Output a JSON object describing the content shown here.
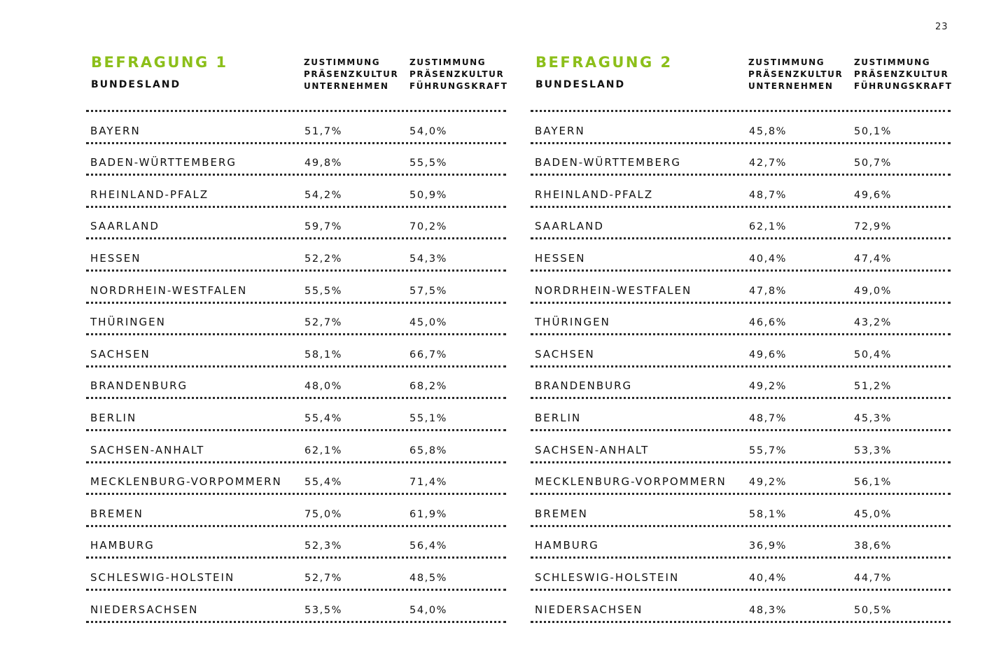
{
  "page_number": "23",
  "headers": {
    "bundesland": "BUNDESLAND",
    "col1": [
      "ZUSTIMMUNG",
      "PRÄSENZKULTUR",
      "UNTERNEHMEN"
    ],
    "col2": [
      "ZUSTIMMUNG",
      "PRÄSENZKULTUR",
      "FÜHRUNGSKRAFT"
    ]
  },
  "surveys": [
    {
      "title": "BEFRAGUNG 1",
      "rows": [
        {
          "state": "BAYERN",
          "unternehmen": "51,7%",
          "fuehrungskraft": "54,0%"
        },
        {
          "state": "BADEN-WÜRTTEMBERG",
          "unternehmen": "49,8%",
          "fuehrungskraft": "55,5%"
        },
        {
          "state": "RHEINLAND-PFALZ",
          "unternehmen": "54,2%",
          "fuehrungskraft": "50,9%"
        },
        {
          "state": "SAARLAND",
          "unternehmen": "59,7%",
          "fuehrungskraft": "70,2%"
        },
        {
          "state": "HESSEN",
          "unternehmen": "52,2%",
          "fuehrungskraft": "54,3%"
        },
        {
          "state": "NORDRHEIN-WESTFALEN",
          "unternehmen": "55,5%",
          "fuehrungskraft": "57,5%"
        },
        {
          "state": "THÜRINGEN",
          "unternehmen": "52,7%",
          "fuehrungskraft": "45,0%"
        },
        {
          "state": "SACHSEN",
          "unternehmen": "58,1%",
          "fuehrungskraft": "66,7%"
        },
        {
          "state": "BRANDENBURG",
          "unternehmen": "48,0%",
          "fuehrungskraft": "68,2%"
        },
        {
          "state": "BERLIN",
          "unternehmen": "55,4%",
          "fuehrungskraft": "55,1%"
        },
        {
          "state": "SACHSEN-ANHALT",
          "unternehmen": "62,1%",
          "fuehrungskraft": "65,8%"
        },
        {
          "state": "MECKLENBURG-VORPOMMERN",
          "unternehmen": "55,4%",
          "fuehrungskraft": "71,4%"
        },
        {
          "state": "BREMEN",
          "unternehmen": "75,0%",
          "fuehrungskraft": "61,9%"
        },
        {
          "state": "HAMBURG",
          "unternehmen": "52,3%",
          "fuehrungskraft": "56,4%"
        },
        {
          "state": "SCHLESWIG-HOLSTEIN",
          "unternehmen": "52,7%",
          "fuehrungskraft": "48,5%"
        },
        {
          "state": "NIEDERSACHSEN",
          "unternehmen": "53,5%",
          "fuehrungskraft": "54,0%"
        }
      ]
    },
    {
      "title": "BEFRAGUNG 2",
      "rows": [
        {
          "state": "BAYERN",
          "unternehmen": "45,8%",
          "fuehrungskraft": "50,1%"
        },
        {
          "state": "BADEN-WÜRTTEMBERG",
          "unternehmen": "42,7%",
          "fuehrungskraft": "50,7%"
        },
        {
          "state": "RHEINLAND-PFALZ",
          "unternehmen": "48,7%",
          "fuehrungskraft": "49,6%"
        },
        {
          "state": "SAARLAND",
          "unternehmen": "62,1%",
          "fuehrungskraft": "72,9%"
        },
        {
          "state": "HESSEN",
          "unternehmen": "40,4%",
          "fuehrungskraft": "47,4%"
        },
        {
          "state": "NORDRHEIN-WESTFALEN",
          "unternehmen": "47,8%",
          "fuehrungskraft": "49,0%"
        },
        {
          "state": "THÜRINGEN",
          "unternehmen": "46,6%",
          "fuehrungskraft": "43,2%"
        },
        {
          "state": "SACHSEN",
          "unternehmen": "49,6%",
          "fuehrungskraft": "50,4%"
        },
        {
          "state": "BRANDENBURG",
          "unternehmen": "49,2%",
          "fuehrungskraft": "51,2%"
        },
        {
          "state": "BERLIN",
          "unternehmen": "48,7%",
          "fuehrungskraft": "45,3%"
        },
        {
          "state": "SACHSEN-ANHALT",
          "unternehmen": "55,7%",
          "fuehrungskraft": "53,3%"
        },
        {
          "state": "MECKLENBURG-VORPOMMERN",
          "unternehmen": "49,2%",
          "fuehrungskraft": "56,1%"
        },
        {
          "state": "BREMEN",
          "unternehmen": "58,1%",
          "fuehrungskraft": "45,0%"
        },
        {
          "state": "HAMBURG",
          "unternehmen": "36,9%",
          "fuehrungskraft": "38,6%"
        },
        {
          "state": "SCHLESWIG-HOLSTEIN",
          "unternehmen": "40,4%",
          "fuehrungskraft": "44,7%"
        },
        {
          "state": "NIEDERSACHSEN",
          "unternehmen": "48,3%",
          "fuehrungskraft": "50,5%"
        }
      ]
    }
  ],
  "colors": {
    "accent": "#8cbf1a",
    "text": "#111111",
    "rule": "#2a2a2a"
  }
}
